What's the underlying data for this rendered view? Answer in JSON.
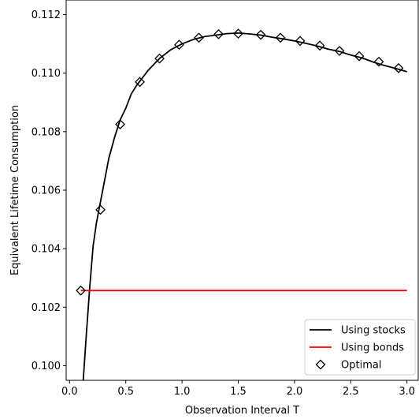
{
  "chart_data": {
    "type": "line",
    "xlabel": "Observation Interval T",
    "ylabel": "Equivalent Lifetime Consumption",
    "xlim": [
      -0.03,
      3.1
    ],
    "ylim": [
      0.0995,
      0.1125
    ],
    "xticks": [
      0.0,
      0.5,
      1.0,
      1.5,
      2.0,
      2.5,
      3.0
    ],
    "xtick_labels": [
      "0.0",
      "0.5",
      "1.0",
      "1.5",
      "2.0",
      "2.5",
      "3.0"
    ],
    "yticks": [
      0.1,
      0.102,
      0.104,
      0.106,
      0.108,
      0.11,
      0.112
    ],
    "ytick_labels": [
      "0.100",
      "0.102",
      "0.104",
      "0.106",
      "0.108",
      "0.110",
      "0.112"
    ],
    "grid": false,
    "legend_position": "bottom-right",
    "series": [
      {
        "name": "Using stocks",
        "kind": "line",
        "color": "#000000",
        "x": [
          0.12,
          0.15,
          0.18,
          0.21,
          0.24,
          0.27,
          0.3,
          0.35,
          0.4,
          0.45,
          0.5,
          0.55,
          0.6,
          0.7,
          0.8,
          0.9,
          1.0,
          1.1,
          1.2,
          1.3,
          1.4,
          1.5,
          1.6,
          1.7,
          1.8,
          1.9,
          2.0,
          2.1,
          2.2,
          2.3,
          2.4,
          2.5,
          2.6,
          2.7,
          2.8,
          2.9,
          3.0
        ],
        "y": [
          0.0994,
          0.1011,
          0.1027,
          0.1041,
          0.1049,
          0.1055,
          0.1061,
          0.1071,
          0.1078,
          0.1084,
          0.1088,
          0.1093,
          0.1096,
          0.1101,
          0.1105,
          0.1108,
          0.111,
          0.11115,
          0.11125,
          0.1113,
          0.11135,
          0.11137,
          0.11134,
          0.1113,
          0.11123,
          0.11117,
          0.1111,
          0.11102,
          0.11093,
          0.11082,
          0.11074,
          0.11062,
          0.11052,
          0.11038,
          0.11026,
          0.11016,
          0.11005
        ]
      },
      {
        "name": "Using bonds",
        "kind": "line",
        "color": "#ff0000",
        "x": [
          0.1,
          3.0
        ],
        "y": [
          0.10257,
          0.10257
        ]
      },
      {
        "name": "Optimal",
        "kind": "marker",
        "marker": "diamond",
        "color": "#000000",
        "x": [
          0.1,
          0.275,
          0.45,
          0.625,
          0.8,
          0.975,
          1.15,
          1.325,
          1.5,
          1.7,
          1.875,
          2.05,
          2.225,
          2.4,
          2.575,
          2.75,
          2.925
        ],
        "y": [
          0.10257,
          0.10533,
          0.10825,
          0.1097,
          0.1105,
          0.11097,
          0.11121,
          0.11133,
          0.11135,
          0.11131,
          0.11121,
          0.1111,
          0.11094,
          0.11076,
          0.11058,
          0.11039,
          0.11017
        ]
      }
    ]
  }
}
